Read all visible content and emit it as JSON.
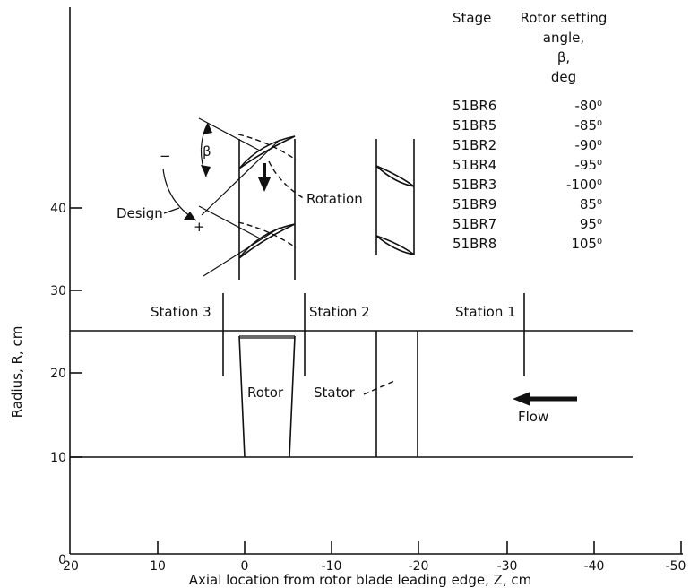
{
  "axes": {
    "xlabel": "Axial location from rotor blade leading edge, Z, cm",
    "ylabel": "Radius, R, cm",
    "x_ticks": [
      "20",
      "10",
      "0",
      "-10",
      "-20",
      "-30",
      "-40",
      "-50"
    ],
    "y_ticks": [
      "0",
      "10",
      "20",
      "30",
      "40"
    ],
    "xlim": [
      20,
      -50
    ],
    "ylim": [
      0,
      50
    ]
  },
  "labels": {
    "station3": "Station 3",
    "station2": "Station 2",
    "station1": "Station 1",
    "rotor": "Rotor",
    "stator": "Stator",
    "flow": "Flow",
    "design": "Design",
    "rotation": "Rotation",
    "beta": "β",
    "minus": "−",
    "plus": "+"
  },
  "table": {
    "header_stage": "Stage",
    "header_angle_lines": [
      "Rotor setting",
      "angle,",
      "β,",
      "deg"
    ],
    "rows": [
      {
        "stage": "51BR6",
        "angle": "-80⁰"
      },
      {
        "stage": "51BR5",
        "angle": "-85⁰"
      },
      {
        "stage": "51BR2",
        "angle": "-90⁰"
      },
      {
        "stage": "51BR4",
        "angle": "-95⁰"
      },
      {
        "stage": "51BR3",
        "angle": "-100⁰"
      },
      {
        "stage": "51BR9",
        "angle": "85⁰"
      },
      {
        "stage": "51BR7",
        "angle": "95⁰"
      },
      {
        "stage": "51BR8",
        "angle": "105⁰"
      }
    ]
  }
}
